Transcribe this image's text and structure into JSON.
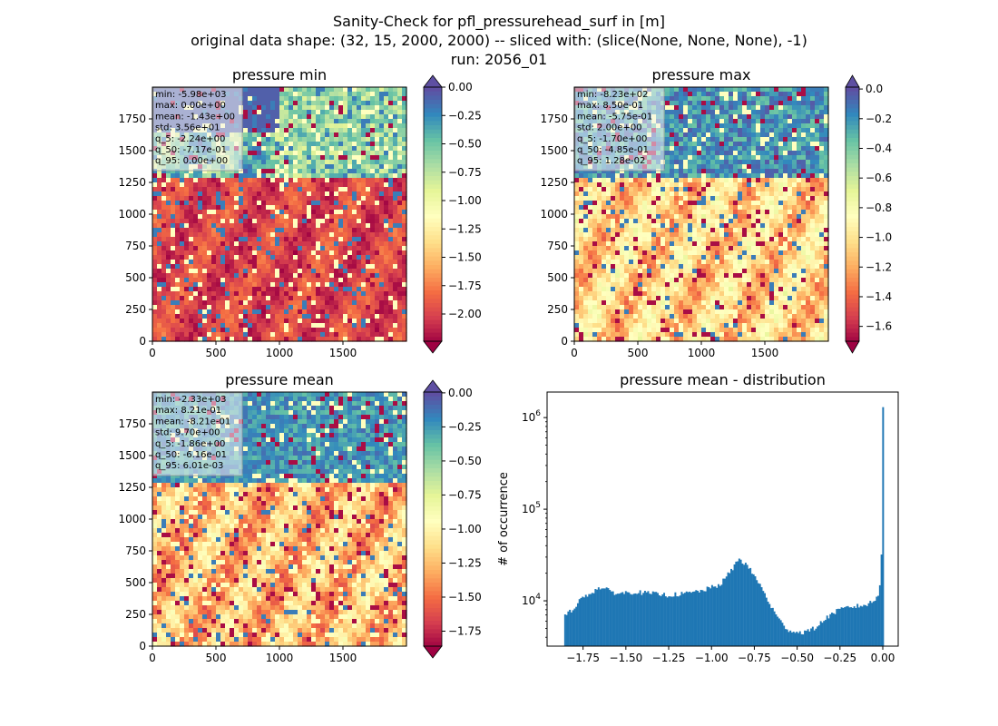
{
  "figure": {
    "title_lines": [
      "Sanity-Check for pfl_pressurehead_surf in [m]",
      "original data shape: (32, 15, 2000, 2000) -- sliced with: (slice(None, None, None), -1)",
      "run: 2056_01"
    ]
  },
  "chart_data": [
    {
      "type": "heatmap",
      "title": "pressure min",
      "x_ticks": [
        "0",
        "500",
        "1000",
        "1500"
      ],
      "y_ticks": [
        "0",
        "250",
        "500",
        "750",
        "1000",
        "1250",
        "1500",
        "1750"
      ],
      "xlim": [
        0,
        2000
      ],
      "ylim": [
        0,
        2000
      ],
      "colormap": "Spectral",
      "colorbar": {
        "vmin": -2.24,
        "vmax": 0.0,
        "extend": "both",
        "ticks": [
          "0.00",
          "−0.25",
          "−0.50",
          "−0.75",
          "−1.00",
          "−1.25",
          "−1.50",
          "−1.75",
          "−2.00"
        ],
        "tick_values": [
          0,
          -0.25,
          -0.5,
          -0.75,
          -1.0,
          -1.25,
          -1.5,
          -1.75,
          -2.0
        ]
      },
      "stats": [
        "min: -5.98e+03",
        "max: 0.00e+00",
        "mean: -1.43e+00",
        "std: 3.56e+01",
        "q_5: -2.24e+00",
        "q_50: -7.17e-01",
        "q_95: 0.00e+00"
      ]
    },
    {
      "type": "heatmap",
      "title": "pressure max",
      "x_ticks": [
        "0",
        "500",
        "1000",
        "1500"
      ],
      "y_ticks": [
        "0",
        "250",
        "500",
        "750",
        "1000",
        "1250",
        "1500",
        "1750"
      ],
      "xlim": [
        0,
        2000
      ],
      "ylim": [
        0,
        2000
      ],
      "colormap": "Spectral",
      "colorbar": {
        "vmin": -1.7,
        "vmax": 0.0128,
        "extend": "both",
        "ticks": [
          "0.0",
          "−0.2",
          "−0.4",
          "−0.6",
          "−0.8",
          "−1.0",
          "−1.2",
          "−1.4",
          "−1.6"
        ],
        "tick_values": [
          0,
          -0.2,
          -0.4,
          -0.6,
          -0.8,
          -1.0,
          -1.2,
          -1.4,
          -1.6
        ]
      },
      "stats": [
        "min: -8.23e+02",
        "max: 8.50e-01",
        "mean: -5.75e-01",
        "std: 2.00e+00",
        "q_5: -1.70e+00",
        "q_50: -4.85e-01",
        "q_95: 1.28e-02"
      ]
    },
    {
      "type": "heatmap",
      "title": "pressure mean",
      "x_ticks": [
        "0",
        "500",
        "1000",
        "1500"
      ],
      "y_ticks": [
        "0",
        "250",
        "500",
        "750",
        "1000",
        "1250",
        "1500",
        "1750"
      ],
      "xlim": [
        0,
        2000
      ],
      "ylim": [
        0,
        2000
      ],
      "colormap": "Spectral",
      "colorbar": {
        "vmin": -1.86,
        "vmax": 0.006,
        "extend": "both",
        "ticks": [
          "0.00",
          "−0.25",
          "−0.50",
          "−0.75",
          "−1.00",
          "−1.25",
          "−1.50",
          "−1.75"
        ],
        "tick_values": [
          0,
          -0.25,
          -0.5,
          -0.75,
          -1.0,
          -1.25,
          -1.5,
          -1.75
        ]
      },
      "stats": [
        "min: -2.33e+03",
        "max: 8.21e-01",
        "mean: -8.21e-01",
        "std: 9.70e+00",
        "q_5: -1.86e+00",
        "q_50: -6.16e-01",
        "q_95: 6.01e-03"
      ]
    },
    {
      "type": "bar",
      "title": "pressure mean - distribution",
      "ylabel": "# of occurrence",
      "xlabel": "",
      "yscale": "log",
      "xlim": [
        -1.96,
        0.09
      ],
      "ylim": [
        3200,
        1900000
      ],
      "x_ticks": [
        "−1.75",
        "−1.50",
        "−1.25",
        "−1.00",
        "−0.75",
        "−0.50",
        "−0.25",
        "0.00"
      ],
      "x_tick_values": [
        -1.75,
        -1.5,
        -1.25,
        -1.0,
        -0.75,
        -0.5,
        -0.25,
        0.0
      ],
      "y_ticks": [
        "10^4",
        "10^5",
        "10^6"
      ],
      "y_tick_values": [
        10000,
        100000,
        1000000
      ],
      "bar_color": "#1f77b4",
      "bin_range": [
        -1.86,
        0.006
      ],
      "x": [
        -1.85,
        -1.75,
        -1.65,
        -1.55,
        -1.45,
        -1.35,
        -1.25,
        -1.15,
        -1.05,
        -0.95,
        -0.88,
        -0.84,
        -0.8,
        -0.75,
        -0.7,
        -0.65,
        -0.6,
        -0.55,
        -0.5,
        -0.45,
        -0.4,
        -0.35,
        -0.3,
        -0.25,
        -0.2,
        -0.1,
        -0.05,
        -0.02,
        -0.005,
        0.0
      ],
      "values": [
        6800,
        11000,
        14000,
        12000,
        12500,
        12000,
        11500,
        12000,
        13000,
        15000,
        22000,
        29000,
        25000,
        19000,
        13000,
        8500,
        6000,
        4800,
        4500,
        4600,
        5000,
        6000,
        7200,
        8000,
        8500,
        9000,
        10000,
        12000,
        32000,
        1300000
      ]
    }
  ]
}
